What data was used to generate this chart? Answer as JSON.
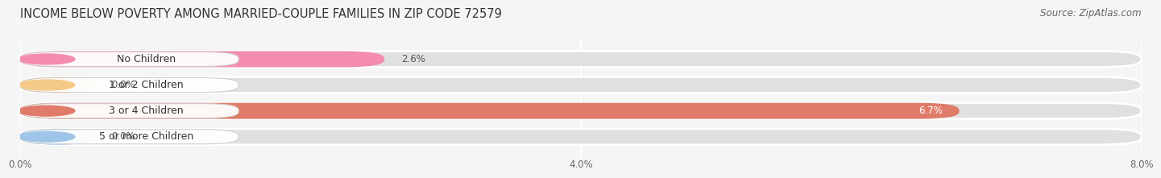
{
  "title": "INCOME BELOW POVERTY AMONG MARRIED-COUPLE FAMILIES IN ZIP CODE 72579",
  "source": "Source: ZipAtlas.com",
  "categories": [
    "No Children",
    "1 or 2 Children",
    "3 or 4 Children",
    "5 or more Children"
  ],
  "values": [
    2.6,
    0.0,
    6.7,
    0.0
  ],
  "bar_colors": [
    "#f48cb1",
    "#f5c988",
    "#e07b6a",
    "#9fc5e8"
  ],
  "xlim": [
    0,
    8.0
  ],
  "xticks": [
    0.0,
    4.0,
    8.0
  ],
  "xticklabels": [
    "0.0%",
    "4.0%",
    "8.0%"
  ],
  "background_color": "#f5f5f5",
  "bar_background_color": "#e0e0e0",
  "title_fontsize": 10.5,
  "source_fontsize": 8.5,
  "label_fontsize": 9,
  "value_fontsize": 8.5
}
